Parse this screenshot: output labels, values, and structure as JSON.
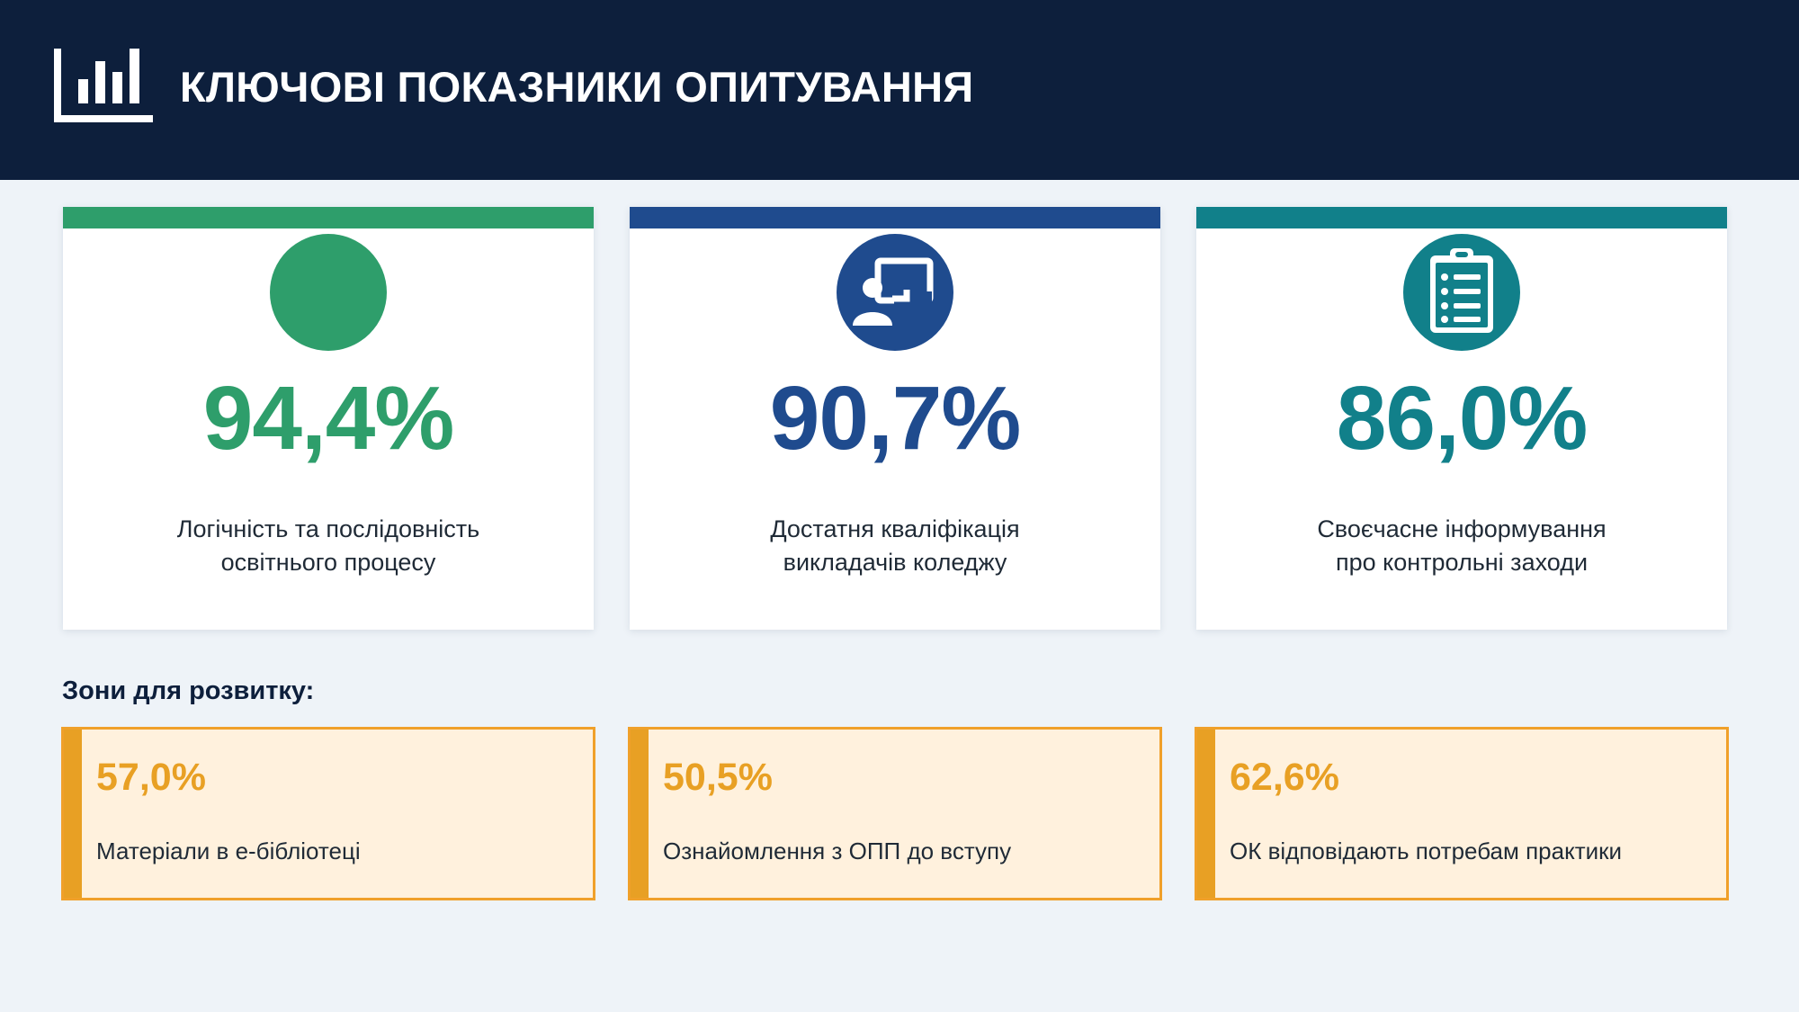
{
  "header": {
    "title": "КЛЮЧОВІ ПОКАЗНИКИ ОПИТУВАННЯ",
    "icon": "bar-chart-icon"
  },
  "colors": {
    "green": "#2e9e6b",
    "blue": "#1f4b8e",
    "teal": "#11808a",
    "orange": "#e8a024",
    "navy": "#0d1f3c"
  },
  "metrics": [
    {
      "value": "94,4%",
      "label_line1": "Логічність та послідовність",
      "label_line2": "освітнього процесу",
      "icon": "circle-icon"
    },
    {
      "value": "90,7%",
      "label_line1": "Достатня кваліфікація",
      "label_line2": "викладачів коледжу",
      "icon": "teacher-board-icon"
    },
    {
      "value": "86,0%",
      "label_line1": "Своєчасне інформування",
      "label_line2": "про контрольні заходи",
      "icon": "clipboard-list-icon"
    }
  ],
  "zones_title": "Зони для розвитку:",
  "zones": [
    {
      "value": "57,0%",
      "label": "Матеріали в е-бібліотеці"
    },
    {
      "value": "50,5%",
      "label": "Ознайомлення з ОПП до вступу"
    },
    {
      "value": "62,6%",
      "label": "ОК відповідають потребам практики"
    }
  ]
}
